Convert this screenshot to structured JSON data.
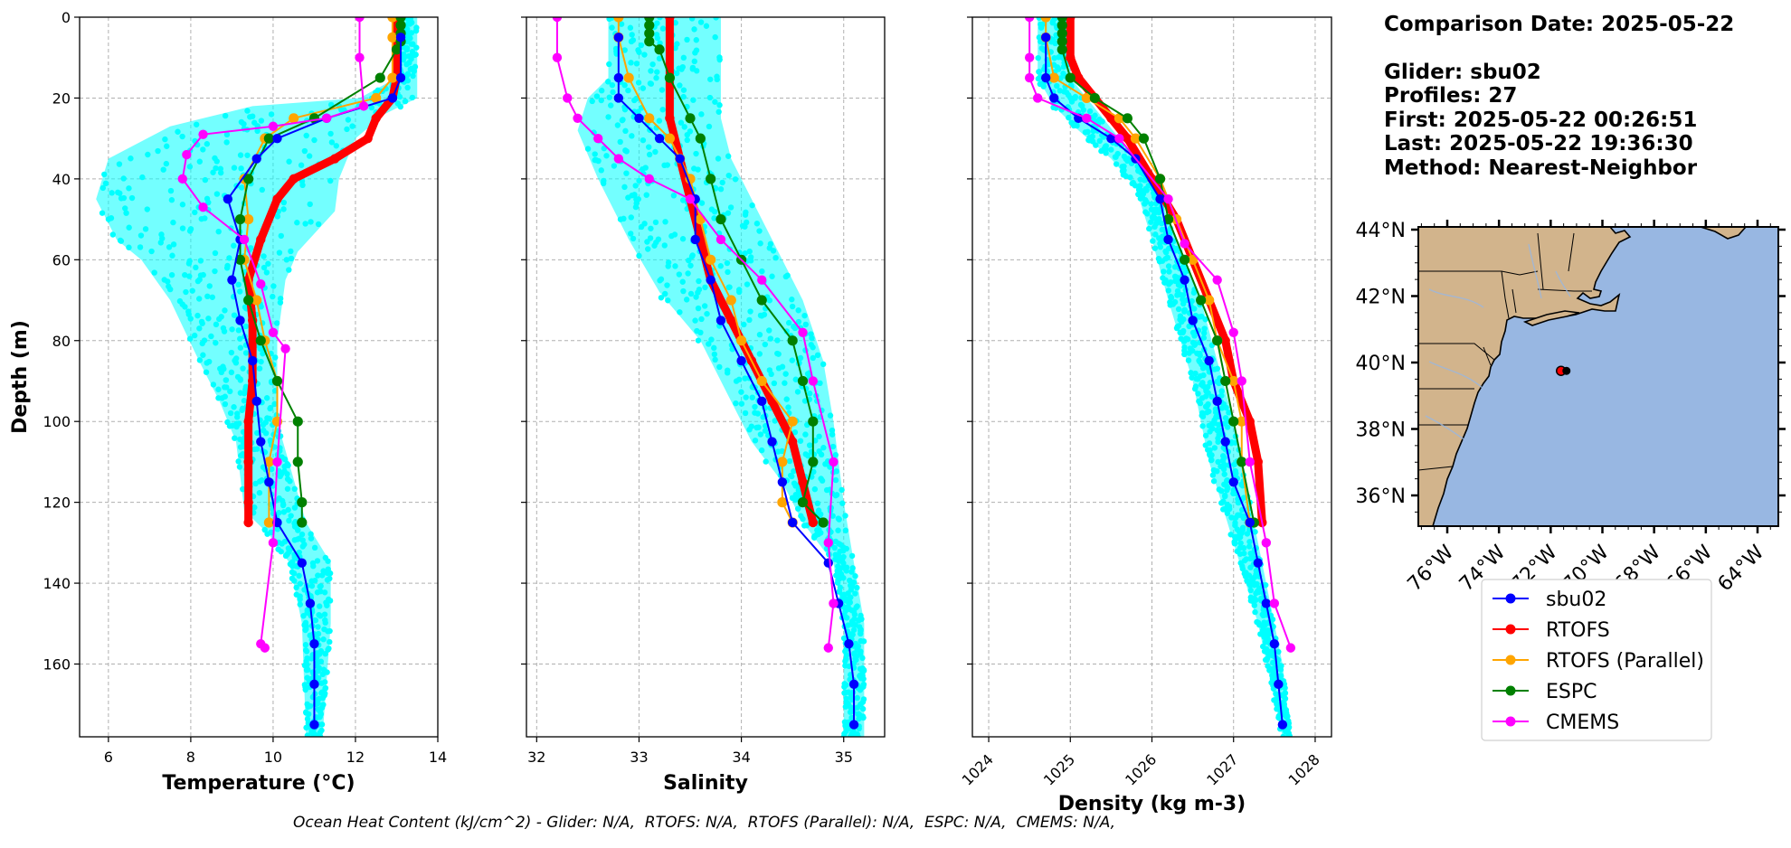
{
  "info": {
    "comparison_date": "Comparison Date: 2025-05-22",
    "glider": "Glider: sbu02",
    "profiles": "Profiles: 27",
    "first": "First: 2025-05-22 00:26:51",
    "last": "Last: 2025-05-22 19:36:30",
    "method": "Method: Nearest-Neighbor"
  },
  "footer": "Ocean Heat Content (kJ/cm^2) - Glider: N/A,  RTOFS: N/A,  RTOFS (Parallel): N/A,  ESPC: N/A,  CMEMS: N/A,",
  "colors": {
    "sbu02": "#0000ff",
    "RTOFS": "#ff0000",
    "RTOFS (Parallel)": "#ffa500",
    "ESPC": "#008000",
    "CMEMS": "#ff00ff",
    "glider_raw": "#00ffff",
    "land": "#d2b48c",
    "ocean": "#98b7e2"
  },
  "legend": [
    "sbu02",
    "RTOFS",
    "RTOFS (Parallel)",
    "ESPC",
    "CMEMS"
  ],
  "chart_data": [
    {
      "type": "line",
      "title": "",
      "xlabel": "Temperature (°C)",
      "ylabel": "Depth (m)",
      "xlim": [
        5.3,
        14
      ],
      "ylim": [
        178,
        0
      ],
      "xticks": [
        6,
        8,
        10,
        12,
        14
      ],
      "yticks": [
        0,
        20,
        40,
        60,
        80,
        100,
        120,
        140,
        160
      ],
      "grid": true,
      "glider_raw_envelope": {
        "left": [
          [
            13.1,
            0
          ],
          [
            13.0,
            15
          ],
          [
            12.1,
            20
          ],
          [
            9.5,
            22
          ],
          [
            7.5,
            27
          ],
          [
            6.0,
            35
          ],
          [
            5.7,
            45
          ],
          [
            6.2,
            55
          ],
          [
            6.8,
            60
          ],
          [
            7.5,
            70
          ],
          [
            8.2,
            85
          ],
          [
            8.7,
            95
          ],
          [
            9.1,
            105
          ],
          [
            9.3,
            122
          ],
          [
            9.9,
            128
          ],
          [
            10.4,
            135
          ],
          [
            10.7,
            150
          ],
          [
            10.8,
            178
          ]
        ],
        "right": [
          [
            13.5,
            0
          ],
          [
            13.5,
            20
          ],
          [
            12.7,
            24
          ],
          [
            12.0,
            30
          ],
          [
            11.6,
            40
          ],
          [
            11.5,
            48
          ],
          [
            10.6,
            58
          ],
          [
            10.3,
            65
          ],
          [
            10.1,
            80
          ],
          [
            10.1,
            100
          ],
          [
            10.8,
            125
          ],
          [
            11.4,
            135
          ],
          [
            11.4,
            150
          ],
          [
            11.2,
            178
          ]
        ]
      },
      "series": [
        {
          "name": "sbu02",
          "x": [
            13.1,
            13.1,
            12.9,
            11.3,
            10.1,
            9.6,
            8.9,
            9.2,
            9.0,
            9.2,
            9.5,
            9.6,
            9.7,
            9.9,
            10.1,
            10.7,
            10.9,
            11.0,
            11.0,
            11.0
          ],
          "y": [
            5,
            15,
            20,
            25,
            30,
            35,
            45,
            55,
            65,
            75,
            85,
            95,
            105,
            115,
            125,
            135,
            145,
            155,
            165,
            175
          ]
        },
        {
          "name": "RTOFS",
          "x": [
            13.0,
            13.0,
            12.9,
            12.5,
            12.3,
            11.5,
            10.5,
            10.1,
            9.7,
            9.4,
            9.5,
            9.5,
            9.4,
            9.4,
            9.4,
            9.4
          ],
          "y": [
            0,
            15,
            20,
            25,
            30,
            35,
            40,
            45,
            55,
            65,
            75,
            90,
            100,
            110,
            120,
            125
          ]
        },
        {
          "name": "RTOFS (Parallel)",
          "x": [
            12.9,
            12.9,
            12.9,
            12.5,
            10.5,
            9.8,
            9.3,
            9.4,
            9.3,
            9.6,
            9.8,
            10.1,
            10.1,
            9.9,
            9.9
          ],
          "y": [
            0,
            5,
            15,
            20,
            25,
            30,
            40,
            50,
            60,
            70,
            80,
            90,
            100,
            110,
            125
          ]
        },
        {
          "name": "ESPC",
          "x": [
            13.1,
            13.1,
            13.1,
            13.1,
            13.0,
            12.6,
            11.0,
            9.9,
            9.4,
            9.2,
            9.2,
            9.4,
            9.7,
            10.1,
            10.6,
            10.6,
            10.7,
            10.7
          ],
          "y": [
            0,
            2,
            4,
            6,
            8,
            15,
            25,
            30,
            40,
            50,
            60,
            70,
            80,
            90,
            100,
            110,
            120,
            125
          ]
        },
        {
          "name": "CMEMS",
          "x": [
            12.1,
            12.1,
            12.2,
            11.3,
            10.0,
            8.3,
            7.9,
            7.8,
            8.3,
            9.3,
            9.7,
            10.0,
            10.3,
            10.1,
            10.0,
            9.7,
            9.8
          ],
          "y": [
            0,
            10,
            22,
            25,
            27,
            29,
            34,
            40,
            47,
            55,
            66,
            78,
            82,
            110,
            130,
            155,
            156
          ]
        }
      ]
    },
    {
      "type": "line",
      "title": "",
      "xlabel": "Salinity",
      "ylabel": "",
      "xlim": [
        31.9,
        35.4
      ],
      "ylim": [
        178,
        0
      ],
      "xticks": [
        32,
        33,
        34,
        35
      ],
      "grid": true,
      "glider_raw_envelope": {
        "left": [
          [
            32.7,
            0
          ],
          [
            32.7,
            15
          ],
          [
            32.5,
            20
          ],
          [
            32.4,
            28
          ],
          [
            32.6,
            40
          ],
          [
            32.9,
            55
          ],
          [
            33.2,
            68
          ],
          [
            33.6,
            80
          ],
          [
            33.9,
            95
          ],
          [
            34.1,
            105
          ],
          [
            34.4,
            115
          ],
          [
            34.6,
            125
          ],
          [
            34.9,
            135
          ],
          [
            35.0,
            150
          ],
          [
            35.0,
            178
          ]
        ],
        "right": [
          [
            33.8,
            0
          ],
          [
            33.8,
            15
          ],
          [
            33.8,
            25
          ],
          [
            33.9,
            35
          ],
          [
            34.1,
            45
          ],
          [
            34.3,
            55
          ],
          [
            34.6,
            70
          ],
          [
            34.8,
            85
          ],
          [
            34.9,
            100
          ],
          [
            35.0,
            120
          ],
          [
            35.1,
            135
          ],
          [
            35.2,
            150
          ],
          [
            35.2,
            178
          ]
        ]
      },
      "series": [
        {
          "name": "sbu02",
          "x": [
            32.8,
            32.8,
            32.8,
            33.0,
            33.2,
            33.4,
            33.55,
            33.55,
            33.7,
            33.8,
            34.0,
            34.2,
            34.3,
            34.4,
            34.5,
            34.85,
            34.95,
            35.05,
            35.1,
            35.1
          ],
          "y": [
            5,
            15,
            20,
            25,
            30,
            35,
            45,
            55,
            65,
            75,
            85,
            95,
            105,
            115,
            125,
            135,
            145,
            155,
            165,
            175
          ]
        },
        {
          "name": "RTOFS",
          "x": [
            33.3,
            33.3,
            33.3,
            33.4,
            33.5,
            33.6,
            33.7,
            33.9,
            34.1,
            34.3,
            34.5,
            34.6,
            34.7
          ],
          "y": [
            0,
            15,
            25,
            35,
            45,
            55,
            65,
            75,
            85,
            95,
            105,
            115,
            125
          ]
        },
        {
          "name": "RTOFS (Parallel)",
          "x": [
            32.8,
            32.8,
            32.9,
            33.1,
            33.3,
            33.4,
            33.5,
            33.6,
            33.7,
            33.9,
            34.0,
            34.2,
            34.5,
            34.4,
            34.4,
            34.5
          ],
          "y": [
            0,
            5,
            15,
            25,
            30,
            35,
            40,
            50,
            60,
            70,
            80,
            90,
            100,
            110,
            120,
            125
          ]
        },
        {
          "name": "ESPC",
          "x": [
            33.1,
            33.1,
            33.1,
            33.1,
            33.2,
            33.3,
            33.5,
            33.6,
            33.7,
            33.8,
            34.0,
            34.2,
            34.5,
            34.6,
            34.7,
            34.7,
            34.6,
            34.8
          ],
          "y": [
            0,
            2,
            4,
            6,
            8,
            15,
            25,
            30,
            40,
            50,
            60,
            70,
            80,
            90,
            100,
            110,
            120,
            125
          ]
        },
        {
          "name": "CMEMS",
          "x": [
            32.2,
            32.2,
            32.3,
            32.4,
            32.6,
            32.8,
            33.1,
            33.5,
            33.8,
            34.2,
            34.6,
            34.7,
            34.9,
            34.85,
            34.9,
            34.85
          ],
          "y": [
            0,
            10,
            20,
            25,
            30,
            35,
            40,
            45,
            55,
            65,
            78,
            90,
            110,
            130,
            145,
            156
          ]
        }
      ]
    },
    {
      "type": "line",
      "title": "",
      "xlabel": "Density (kg m-3)",
      "ylabel": "",
      "xlim": [
        1023.8,
        1028.2
      ],
      "ylim": [
        178,
        0
      ],
      "xticks": [
        1024,
        1025,
        1026,
        1027,
        1028
      ],
      "grid": true,
      "glider_raw_envelope": {
        "left": [
          [
            1024.6,
            0
          ],
          [
            1024.6,
            15
          ],
          [
            1024.8,
            22
          ],
          [
            1025.1,
            28
          ],
          [
            1025.5,
            35
          ],
          [
            1025.8,
            42
          ],
          [
            1026.0,
            55
          ],
          [
            1026.2,
            70
          ],
          [
            1026.5,
            90
          ],
          [
            1026.7,
            110
          ],
          [
            1027.0,
            130
          ],
          [
            1027.3,
            150
          ],
          [
            1027.6,
            178
          ]
        ],
        "right": [
          [
            1025.0,
            0
          ],
          [
            1025.0,
            15
          ],
          [
            1025.4,
            25
          ],
          [
            1025.8,
            35
          ],
          [
            1026.1,
            45
          ],
          [
            1026.3,
            55
          ],
          [
            1026.6,
            70
          ],
          [
            1026.8,
            85
          ],
          [
            1027.0,
            100
          ],
          [
            1027.2,
            120
          ],
          [
            1027.4,
            140
          ],
          [
            1027.6,
            160
          ],
          [
            1027.7,
            178
          ]
        ]
      },
      "series": [
        {
          "name": "sbu02",
          "x": [
            1024.7,
            1024.7,
            1024.8,
            1025.1,
            1025.5,
            1025.8,
            1026.1,
            1026.2,
            1026.4,
            1026.5,
            1026.7,
            1026.8,
            1026.9,
            1027.0,
            1027.2,
            1027.3,
            1027.4,
            1027.5,
            1027.55,
            1027.6
          ],
          "y": [
            5,
            15,
            20,
            25,
            30,
            35,
            45,
            55,
            65,
            75,
            85,
            95,
            105,
            115,
            125,
            135,
            145,
            155,
            165,
            175
          ]
        },
        {
          "name": "RTOFS",
          "x": [
            1025.0,
            1025.0,
            1025.1,
            1025.3,
            1025.5,
            1025.7,
            1026.0,
            1026.3,
            1026.5,
            1026.7,
            1026.9,
            1027.0,
            1027.2,
            1027.3,
            1027.35
          ],
          "y": [
            0,
            10,
            15,
            20,
            25,
            30,
            40,
            50,
            60,
            70,
            80,
            90,
            100,
            110,
            125
          ]
        },
        {
          "name": "RTOFS (Parallel)",
          "x": [
            1024.7,
            1024.7,
            1024.8,
            1025.2,
            1025.6,
            1025.8,
            1026.1,
            1026.3,
            1026.5,
            1026.7,
            1026.8,
            1027.0,
            1027.1,
            1027.1,
            1027.2
          ],
          "y": [
            0,
            5,
            15,
            20,
            25,
            30,
            40,
            50,
            60,
            70,
            80,
            90,
            100,
            110,
            125
          ]
        },
        {
          "name": "ESPC",
          "x": [
            1024.9,
            1024.9,
            1024.9,
            1024.9,
            1024.9,
            1025.0,
            1025.3,
            1025.7,
            1025.9,
            1026.1,
            1026.2,
            1026.4,
            1026.6,
            1026.8,
            1026.9,
            1027.0,
            1027.1,
            1027.25
          ],
          "y": [
            0,
            2,
            4,
            6,
            8,
            15,
            20,
            25,
            30,
            40,
            50,
            60,
            70,
            80,
            90,
            100,
            110,
            125
          ]
        },
        {
          "name": "CMEMS",
          "x": [
            1024.5,
            1024.5,
            1024.5,
            1024.6,
            1025.2,
            1025.6,
            1026.2,
            1026.4,
            1026.8,
            1027.0,
            1027.1,
            1027.2,
            1027.4,
            1027.5,
            1027.7
          ],
          "y": [
            0,
            10,
            15,
            20,
            25,
            30,
            45,
            56,
            65,
            78,
            90,
            110,
            130,
            145,
            156
          ]
        }
      ]
    }
  ],
  "map": {
    "lat_labels": [
      "44°N",
      "42°N",
      "40°N",
      "38°N",
      "36°N"
    ],
    "lon_labels": [
      "76°W",
      "74°W",
      "72°W",
      "70°W",
      "68°W",
      "66°W",
      "64°W"
    ],
    "glider_marker": {
      "lon": -71.6,
      "lat": 39.75
    }
  }
}
